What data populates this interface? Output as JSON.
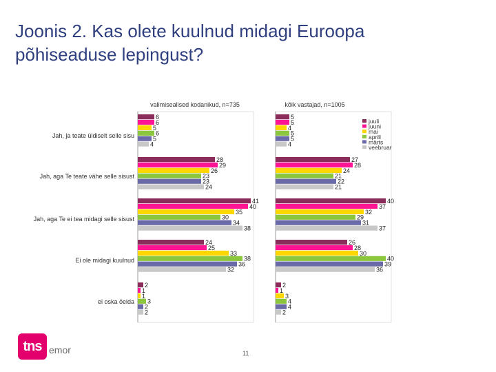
{
  "slide": {
    "title_line1": "Joonis 2. Kas olete kuulnud midagi Euroopa",
    "title_line2": "põhiseaduse lepingust?",
    "page_number": "11",
    "logo_main": "tns",
    "logo_sub": "emor",
    "logo_color": "#e3006d"
  },
  "chart_data": {
    "type": "bar",
    "orientation": "horizontal",
    "categories": [
      "Jah, ja teate üldiselt selle sisu",
      "Jah, aga Te teate vähe selle sisust",
      "Jah, aga Te ei tea midagi selle sisust",
      "Ei ole midagi kuulnud",
      "ei oska öelda"
    ],
    "legend": {
      "placement": "right",
      "entries": [
        "juuli",
        "juuni",
        "mai",
        "aprill",
        "märts",
        "veebruar"
      ]
    },
    "series_colors": [
      "#8b2d5b",
      "#ff1493",
      "#ffd700",
      "#8cc63f",
      "#6a6aa8",
      "#c8c8c8"
    ],
    "xlim": [
      0,
      45
    ],
    "panels": [
      {
        "title": "valimisealised kodanikud, n=735",
        "series": [
          {
            "name": "juuli",
            "values": [
              6,
              28,
              41,
              24,
              2
            ]
          },
          {
            "name": "juuni",
            "values": [
              6,
              29,
              40,
              25,
              1
            ]
          },
          {
            "name": "mai",
            "values": [
              5,
              26,
              35,
              33,
              1
            ]
          },
          {
            "name": "aprill",
            "values": [
              6,
              23,
              30,
              38,
              3
            ]
          },
          {
            "name": "märts",
            "values": [
              5,
              23,
              34,
              36,
              2
            ]
          },
          {
            "name": "veebruar",
            "values": [
              4,
              24,
              38,
              32,
              2
            ]
          }
        ]
      },
      {
        "title": "kõik vastajad, n=1005",
        "series": [
          {
            "name": "juuli",
            "values": [
              5,
              27,
              40,
              26,
              2
            ]
          },
          {
            "name": "juuni",
            "values": [
              5,
              28,
              37,
              28,
              1
            ]
          },
          {
            "name": "mai",
            "values": [
              4,
              24,
              32,
              30,
              3
            ]
          },
          {
            "name": "aprill",
            "values": [
              5,
              21,
              29,
              40,
              4
            ]
          },
          {
            "name": "märts",
            "values": [
              5,
              22,
              31,
              39,
              4
            ]
          },
          {
            "name": "veebruar",
            "values": [
              4,
              21,
              37,
              36,
              2
            ]
          }
        ]
      }
    ]
  }
}
